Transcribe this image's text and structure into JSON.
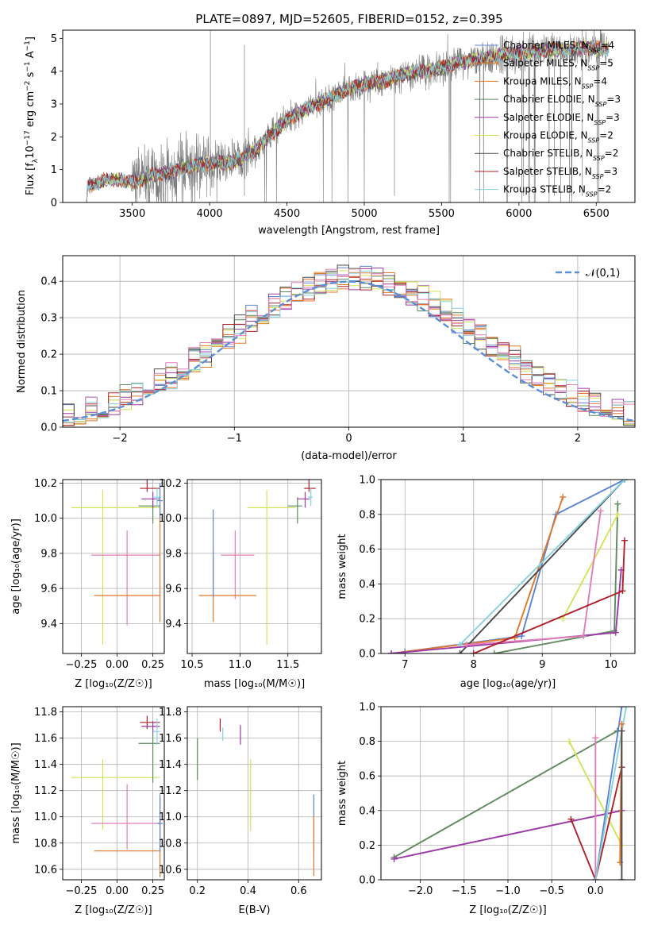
{
  "figure_title": "PLATE=0897, MJD=52605, FIBERID=0152, z=0.395",
  "colors": {
    "chabrier_miles": "#5b83d1",
    "salpeter_miles": "#e0772a",
    "kroupa_miles": "#e37c28",
    "chabrier_elodie": "#5e8a5e",
    "salpeter_elodie": "#9b3aa6",
    "kroupa_elodie": "#d2e35a",
    "chabrier_stelib": "#4a4a4a",
    "salpeter_stelib": "#b0202a",
    "kroupa_stelib": "#86d3df",
    "pink": "#e07fb6",
    "spectrum": "#7a7a7a",
    "normal": "#5b8fd6"
  },
  "chart_data": [
    {
      "id": "spectrum",
      "type": "line",
      "xlabel": "wavelength [Angstrom, rest frame]",
      "ylabel_parts": [
        "Flux [f",
        "λ",
        "10",
        "−17",
        " erg cm",
        "−2",
        " s",
        "−1",
        " A",
        "−1",
        "]"
      ],
      "xlim": [
        3050,
        6750
      ],
      "ylim": [
        0,
        5.25
      ],
      "xticks": [
        3500,
        4000,
        4500,
        5000,
        5500,
        6000,
        6500
      ],
      "yticks": [
        0,
        1,
        2,
        3,
        4,
        5
      ],
      "legend": [
        {
          "name": "Chabrier MILES, N",
          "sub": "SSP",
          "suffix": "=4",
          "color_key": "chabrier_miles"
        },
        {
          "name": "Salpeter MILES, N",
          "sub": "SSP",
          "suffix": "=5",
          "color_key": "salpeter_miles"
        },
        {
          "name": "Kroupa MILES, N",
          "sub": "SSP",
          "suffix": "=4",
          "color_key": "kroupa_miles"
        },
        {
          "name": "Chabrier ELODIE, N",
          "sub": "SSP",
          "suffix": "=3",
          "color_key": "chabrier_elodie"
        },
        {
          "name": "Salpeter ELODIE, N",
          "sub": "SSP",
          "suffix": "=3",
          "color_key": "salpeter_elodie"
        },
        {
          "name": "Kroupa ELODIE, N",
          "sub": "SSP",
          "suffix": "=2",
          "color_key": "kroupa_elodie"
        },
        {
          "name": "Chabrier STELIB, N",
          "sub": "SSP",
          "suffix": "=2",
          "color_key": "chabrier_stelib"
        },
        {
          "name": "Salpeter STELIB, N",
          "sub": "SSP",
          "suffix": "=3",
          "color_key": "salpeter_stelib"
        },
        {
          "name": "Kroupa STELIB, N",
          "sub": "SSP",
          "suffix": "=2",
          "color_key": "kroupa_stelib"
        }
      ],
      "model_trend": [
        [
          3200,
          0
        ],
        [
          3210,
          0.5
        ],
        [
          3300,
          0.65
        ],
        [
          3400,
          0.7
        ],
        [
          3500,
          0.6
        ],
        [
          3600,
          0.8
        ],
        [
          3700,
          0.9
        ],
        [
          3800,
          1.0
        ],
        [
          3900,
          1.1
        ],
        [
          4000,
          1.2
        ],
        [
          4100,
          1.2
        ],
        [
          4200,
          1.3
        ],
        [
          4300,
          1.6
        ],
        [
          4400,
          2.1
        ],
        [
          4500,
          2.5
        ],
        [
          4600,
          2.8
        ],
        [
          4700,
          3.0
        ],
        [
          4800,
          3.2
        ],
        [
          4900,
          3.45
        ],
        [
          5000,
          3.6
        ],
        [
          5100,
          3.7
        ],
        [
          5200,
          3.8
        ],
        [
          5300,
          3.95
        ],
        [
          5400,
          4.0
        ],
        [
          5500,
          4.1
        ],
        [
          5600,
          4.25
        ],
        [
          5700,
          4.35
        ],
        [
          5800,
          4.4
        ],
        [
          5900,
          4.5
        ],
        [
          6000,
          4.55
        ],
        [
          6100,
          4.6
        ],
        [
          6200,
          4.65
        ],
        [
          6300,
          4.65
        ],
        [
          6400,
          4.7
        ],
        [
          6500,
          4.7
        ],
        [
          6580,
          4.7
        ]
      ]
    },
    {
      "id": "histogram",
      "type": "bar",
      "xlabel": "(data-model)/error",
      "ylabel": "Normed distribution",
      "xlim": [
        -2.5,
        2.5
      ],
      "ylim": [
        0,
        0.47
      ],
      "xticks": [
        -2,
        -1,
        0,
        1,
        2
      ],
      "yticks": [
        0.0,
        0.1,
        0.2,
        0.3,
        0.4
      ],
      "legend_label": "𝒩(0,1)",
      "bin_width": 0.1
    },
    {
      "id": "age_vs_Z",
      "type": "scatter",
      "xlabel": "Z [log₁₀(Z/Z☉)]",
      "ylabel": "age  [log₁₀(age/yr)]",
      "xlim": [
        -0.38,
        0.33
      ],
      "ylim": [
        9.23,
        10.22
      ],
      "xticks": [
        -0.25,
        0.0,
        0.25
      ],
      "yticks": [
        9.4,
        9.6,
        9.8,
        10.0,
        10.2
      ]
    },
    {
      "id": "age_vs_mass",
      "type": "scatter",
      "xlabel": "mass [log₁₀(M/M☉)]",
      "xlim": [
        10.45,
        11.85
      ],
      "ylim": [
        9.23,
        10.22
      ],
      "xticks": [
        10.5,
        11.0,
        11.5
      ],
      "yticks": [
        9.4,
        9.6,
        9.8,
        10.0,
        10.2
      ]
    },
    {
      "id": "weight_vs_age",
      "type": "line",
      "xlabel": "age  [log₁₀(age/yr)]",
      "ylabel": "mass weight",
      "xlim": [
        6.65,
        10.35
      ],
      "ylim": [
        0,
        1
      ],
      "xticks": [
        7,
        8,
        9,
        10
      ],
      "yticks": [
        0.0,
        0.2,
        0.4,
        0.6,
        0.8,
        1.0
      ]
    },
    {
      "id": "mass_vs_Z",
      "type": "scatter",
      "xlabel": "Z [log₁₀(Z/Z☉)]",
      "ylabel": "mass [log₁₀(M/M☉)]",
      "xlim": [
        -0.38,
        0.33
      ],
      "ylim": [
        10.52,
        11.84
      ],
      "xticks": [
        -0.25,
        0.0,
        0.25
      ],
      "yticks": [
        10.6,
        10.8,
        11.0,
        11.2,
        11.4,
        11.6,
        11.8
      ]
    },
    {
      "id": "mass_vs_ebv",
      "type": "scatter",
      "xlabel": "E(B-V)",
      "xlim": [
        0.16,
        0.69
      ],
      "ylim": [
        10.52,
        11.84
      ],
      "xticks": [
        0.2,
        0.4,
        0.6
      ],
      "yticks": [
        10.6,
        10.8,
        11.0,
        11.2,
        11.4,
        11.6,
        11.8
      ]
    },
    {
      "id": "weight_vs_Z",
      "type": "line",
      "xlabel": "Z [log₁₀(Z/Z☉)]",
      "ylabel": "mass weight",
      "xlim": [
        -2.45,
        0.45
      ],
      "ylim": [
        0,
        1
      ],
      "xticks": [
        -2.0,
        -1.5,
        -1.0,
        -0.5,
        0.0
      ],
      "yticks": [
        0.0,
        0.2,
        0.4,
        0.6,
        0.8,
        1.0
      ]
    }
  ]
}
